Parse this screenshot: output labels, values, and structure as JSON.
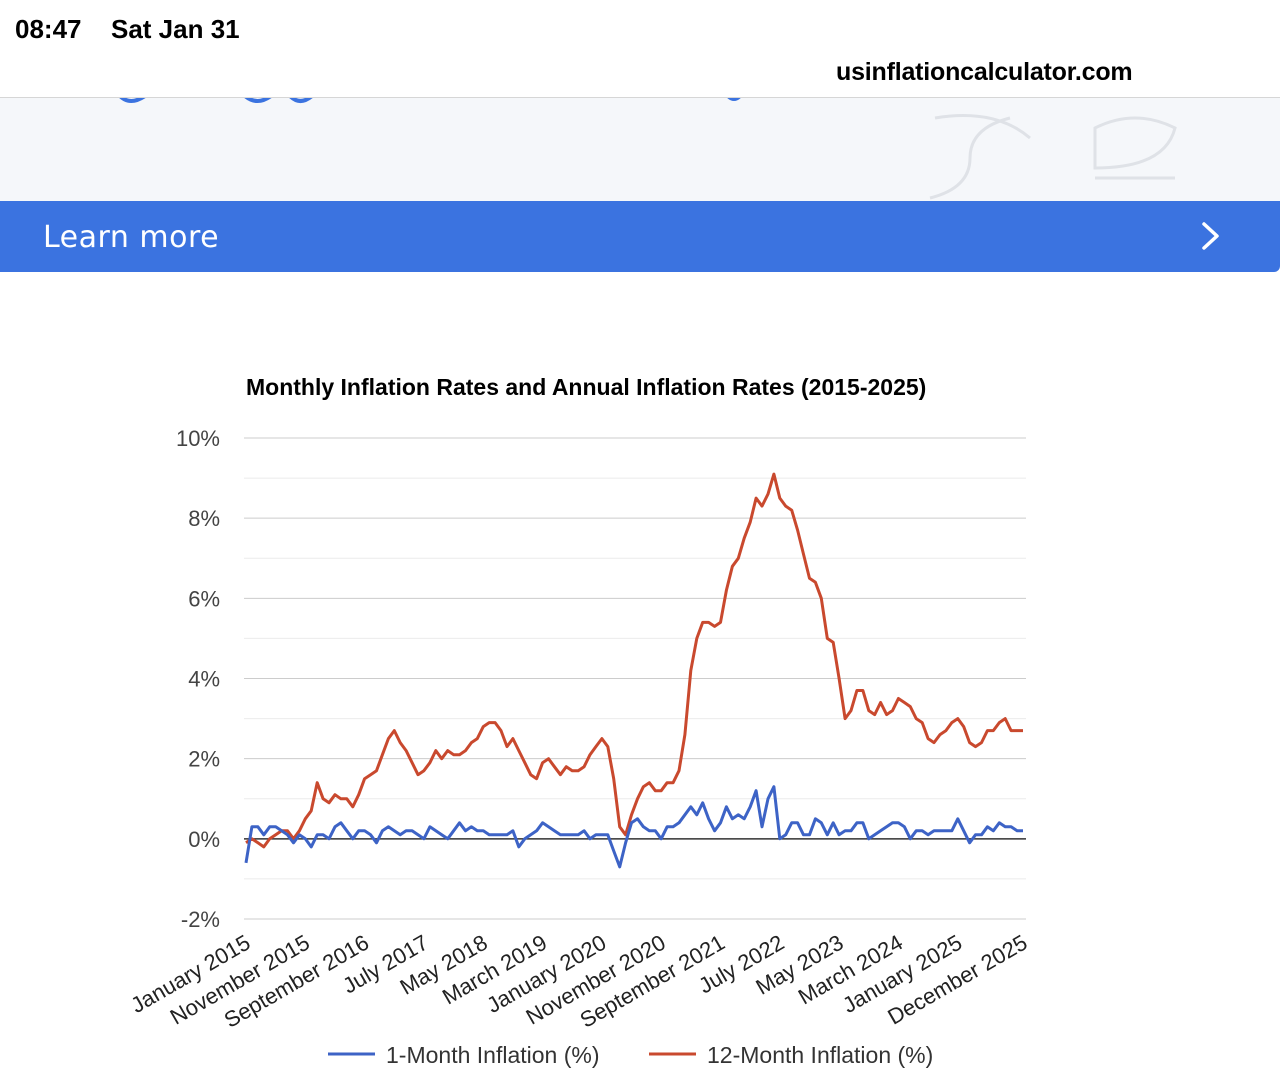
{
  "status": {
    "time": "08:47",
    "date": "Sat Jan 31"
  },
  "browser": {
    "url": "usinflationcalculator.com"
  },
  "banner": {
    "label": "Learn more",
    "chevron_icon": "chevron-right-icon",
    "background": "#3b73e0"
  },
  "chart_data": {
    "type": "line",
    "title": "Monthly Inflation Rates and Annual Inflation Rates (2015-2025)",
    "xlabel": "",
    "ylabel": "",
    "ylim": [
      -2,
      10
    ],
    "yticks": [
      "10%",
      "8%",
      "6%",
      "4%",
      "2%",
      "0%",
      "-2%"
    ],
    "grid": true,
    "legend_position": "bottom",
    "x_tick_labels": [
      "January 2015",
      "November 2015",
      "September 2016",
      "July 2017",
      "May 2018",
      "March 2019",
      "January 2020",
      "November 2020",
      "September 2021",
      "July 2022",
      "May 2023",
      "March 2024",
      "January 2025",
      "December 2025"
    ],
    "x_tick_indices": [
      0,
      10,
      20,
      30,
      40,
      50,
      60,
      70,
      80,
      90,
      100,
      110,
      120,
      131
    ],
    "x_start": "January 2015",
    "x_end": "December 2025",
    "series": [
      {
        "name": "1-Month Inflation (%)",
        "color": "#3d63c6",
        "values": [
          -0.6,
          0.3,
          0.3,
          0.1,
          0.3,
          0.3,
          0.2,
          0.1,
          -0.1,
          0.1,
          0.0,
          -0.2,
          0.1,
          0.1,
          0.0,
          0.3,
          0.4,
          0.2,
          0.0,
          0.2,
          0.2,
          0.1,
          -0.1,
          0.2,
          0.3,
          0.2,
          0.1,
          0.2,
          0.2,
          0.1,
          0.0,
          0.3,
          0.2,
          0.1,
          0.0,
          0.2,
          0.4,
          0.2,
          0.3,
          0.2,
          0.2,
          0.1,
          0.1,
          0.1,
          0.1,
          0.2,
          -0.2,
          0.0,
          0.1,
          0.2,
          0.4,
          0.3,
          0.2,
          0.1,
          0.1,
          0.1,
          0.1,
          0.2,
          0.0,
          0.1,
          0.1,
          0.1,
          -0.3,
          -0.7,
          -0.1,
          0.4,
          0.5,
          0.3,
          0.2,
          0.2,
          0.0,
          0.3,
          0.3,
          0.4,
          0.6,
          0.8,
          0.6,
          0.9,
          0.5,
          0.2,
          0.4,
          0.8,
          0.5,
          0.6,
          0.5,
          0.8,
          1.2,
          0.3,
          1.0,
          1.3,
          0.0,
          0.1,
          0.4,
          0.4,
          0.1,
          0.1,
          0.5,
          0.4,
          0.1,
          0.4,
          0.1,
          0.2,
          0.2,
          0.4,
          0.4,
          0.0,
          0.1,
          0.2,
          0.3,
          0.4,
          0.4,
          0.3,
          0.0,
          0.2,
          0.2,
          0.1,
          0.2,
          0.2,
          0.2,
          0.2,
          0.5,
          0.2,
          -0.1,
          0.1,
          0.1,
          0.3,
          0.2,
          0.4,
          0.3,
          0.3,
          0.2,
          0.2
        ]
      },
      {
        "name": "12-Month Inflation (%)",
        "color": "#c9492e",
        "values": [
          -0.1,
          0.0,
          -0.1,
          -0.2,
          0.0,
          0.1,
          0.2,
          0.2,
          0.0,
          0.2,
          0.5,
          0.7,
          1.4,
          1.0,
          0.9,
          1.1,
          1.0,
          1.0,
          0.8,
          1.1,
          1.5,
          1.6,
          1.7,
          2.1,
          2.5,
          2.7,
          2.4,
          2.2,
          1.9,
          1.6,
          1.7,
          1.9,
          2.2,
          2.0,
          2.2,
          2.1,
          2.1,
          2.2,
          2.4,
          2.5,
          2.8,
          2.9,
          2.9,
          2.7,
          2.3,
          2.5,
          2.2,
          1.9,
          1.6,
          1.5,
          1.9,
          2.0,
          1.8,
          1.6,
          1.8,
          1.7,
          1.7,
          1.8,
          2.1,
          2.3,
          2.5,
          2.3,
          1.5,
          0.3,
          0.1,
          0.6,
          1.0,
          1.3,
          1.4,
          1.2,
          1.2,
          1.4,
          1.4,
          1.7,
          2.6,
          4.2,
          5.0,
          5.4,
          5.4,
          5.3,
          5.4,
          6.2,
          6.8,
          7.0,
          7.5,
          7.9,
          8.5,
          8.3,
          8.6,
          9.1,
          8.5,
          8.3,
          8.2,
          7.7,
          7.1,
          6.5,
          6.4,
          6.0,
          5.0,
          4.9,
          4.0,
          3.0,
          3.2,
          3.7,
          3.7,
          3.2,
          3.1,
          3.4,
          3.1,
          3.2,
          3.5,
          3.4,
          3.3,
          3.0,
          2.9,
          2.5,
          2.4,
          2.6,
          2.7,
          2.9,
          3.0,
          2.8,
          2.4,
          2.3,
          2.4,
          2.7,
          2.7,
          2.9,
          3.0,
          2.7,
          2.7,
          2.7
        ]
      }
    ]
  }
}
